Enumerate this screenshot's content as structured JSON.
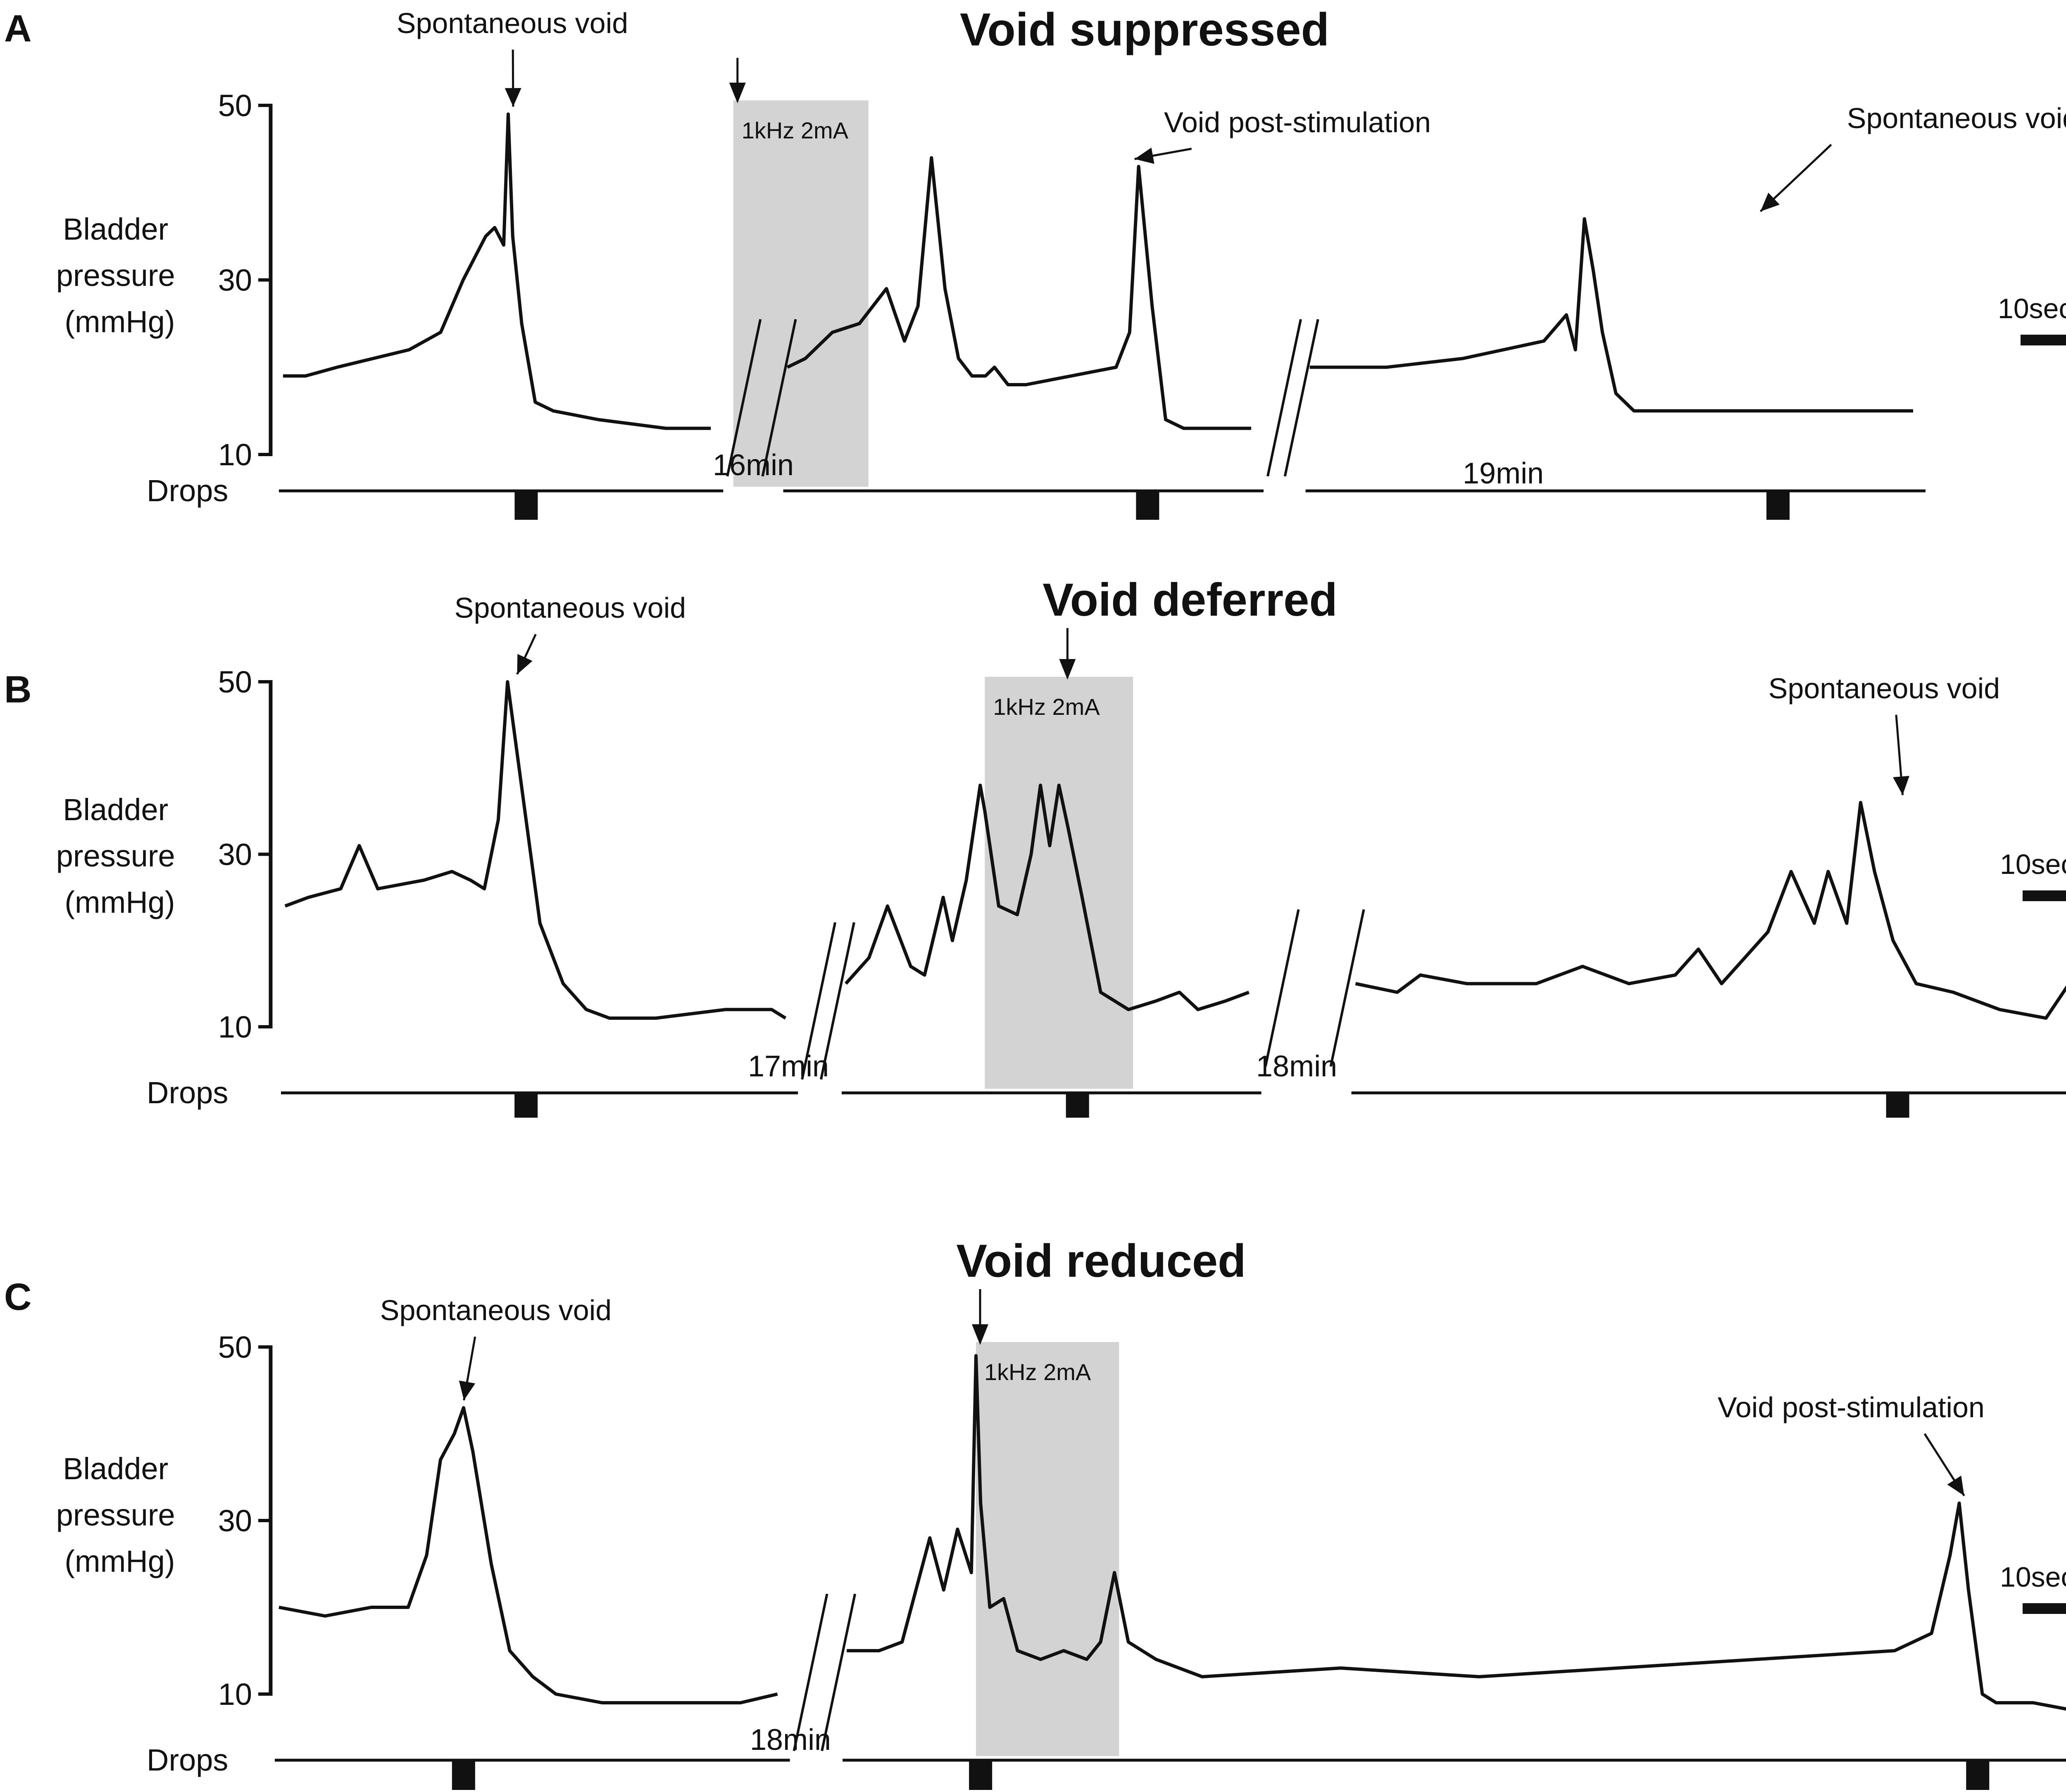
{
  "colors": {
    "trace": "#111111",
    "stim_band": "#d3d3d3",
    "background": "#ffffff"
  },
  "chart_data": [
    {
      "type": "line",
      "panel_label": "A",
      "title": "Void suppressed",
      "ylabel_lines": [
        "Bladder",
        "pressure",
        "(mmHg)"
      ],
      "yticks": [
        10,
        30,
        50
      ],
      "ylim": [
        10,
        50
      ],
      "drops_label": "Drops",
      "scale_bar_label": "10sec",
      "gaps": [
        "16min",
        "19min"
      ],
      "stimulation": {
        "label": "1kHz 2mA",
        "x_start": 100,
        "x_end": 130
      },
      "annotations": [
        {
          "text": "Spontaneous void",
          "target": [
            50,
            49
          ]
        },
        {
          "text": "Void post-stimulation",
          "target": [
            188,
            43
          ]
        },
        {
          "text": "Spontaneous void",
          "target": [
            327,
            37
          ]
        }
      ],
      "drops_at": [
        54,
        192,
        332
      ],
      "x_extent": [
        0,
        401
      ],
      "segments": [
        {
          "x": [
            0,
            5,
            12,
            20,
            28,
            35,
            40,
            45,
            47,
            49,
            50,
            51,
            53,
            56,
            60,
            70,
            85,
            95
          ],
          "y": [
            19,
            19,
            20,
            21,
            22,
            24,
            30,
            35,
            36,
            34,
            49,
            35,
            25,
            16,
            15,
            14,
            13,
            13
          ]
        },
        {
          "x": [
            112,
            116,
            122,
            128,
            134,
            138,
            141,
            144,
            147,
            150,
            153,
            156,
            158,
            161,
            165,
            175,
            185,
            188,
            190,
            193,
            196,
            200,
            215
          ],
          "y": [
            20,
            21,
            24,
            25,
            29,
            23,
            27,
            44,
            29,
            21,
            19,
            19,
            20,
            18,
            18,
            19,
            20,
            24,
            43,
            27,
            14,
            13,
            13
          ]
        },
        {
          "x": [
            228,
            245,
            262,
            280,
            285,
            287,
            289,
            291,
            293,
            296,
            300,
            320,
            340,
            362
          ],
          "y": [
            20,
            20,
            21,
            23,
            26,
            22,
            37,
            31,
            24,
            17,
            15,
            15,
            15,
            15
          ]
        }
      ]
    },
    {
      "type": "line",
      "panel_label": "B",
      "title": "Void deferred",
      "ylabel_lines": [
        "Bladder",
        "pressure",
        "(mmHg)"
      ],
      "yticks": [
        10,
        30,
        50
      ],
      "ylim": [
        10,
        50
      ],
      "drops_label": "Drops",
      "scale_bar_label": "10sec",
      "gaps": [
        "17min",
        "18min"
      ],
      "stimulation": {
        "label": "1kHz 2mA",
        "x_start": 151,
        "x_end": 183
      },
      "annotations": [
        {
          "text": "Spontaneous void",
          "target": [
            49,
            50
          ]
        },
        {
          "text": "Spontaneous void",
          "target": [
            348,
            36
          ]
        }
      ],
      "drops_at": [
        52,
        171,
        348
      ],
      "x_extent": [
        0,
        401
      ],
      "segments": [
        {
          "x": [
            0,
            5,
            12,
            16,
            20,
            30,
            36,
            40,
            43,
            46,
            48,
            51,
            55,
            60,
            65,
            70,
            80,
            95,
            105,
            108
          ],
          "y": [
            24,
            25,
            26,
            31,
            26,
            27,
            28,
            27,
            26,
            34,
            50,
            38,
            22,
            15,
            12,
            11,
            11,
            12,
            12,
            11
          ]
        },
        {
          "x": [
            121,
            126,
            130,
            135,
            138,
            142,
            144,
            147,
            150,
            151,
            154,
            158,
            161,
            163,
            165,
            167,
            169,
            172,
            176,
            182,
            188,
            193,
            197,
            203,
            208
          ],
          "y": [
            15,
            18,
            24,
            17,
            16,
            25,
            20,
            27,
            38,
            35,
            24,
            23,
            30,
            38,
            31,
            38,
            33,
            25,
            14,
            12,
            13,
            14,
            12,
            13,
            14
          ]
        },
        {
          "x": [
            231,
            240,
            245,
            255,
            270,
            280,
            290,
            300,
            305,
            310,
            315,
            320,
            325,
            330,
            333,
            337,
            340,
            343,
            347,
            352,
            360,
            370,
            380,
            385,
            390,
            395,
            401
          ],
          "y": [
            15,
            14,
            16,
            15,
            15,
            17,
            15,
            16,
            19,
            15,
            18,
            21,
            28,
            22,
            28,
            22,
            36,
            28,
            20,
            15,
            14,
            12,
            11,
            15,
            19,
            12,
            13
          ]
        }
      ]
    },
    {
      "type": "line",
      "panel_label": "C",
      "title": "Void reduced",
      "ylabel_lines": [
        "Bladder",
        "pressure",
        "(mmHg)"
      ],
      "yticks": [
        10,
        30,
        50
      ],
      "ylim": [
        10,
        50
      ],
      "drops_label": "Drops",
      "scale_bar_label": "10sec",
      "gaps": [
        "18min"
      ],
      "stimulation": {
        "label": "1kHz 2mA",
        "x_start": 151,
        "x_end": 182
      },
      "annotations": [
        {
          "text": "Spontaneous void",
          "target": [
            39,
            43
          ]
        },
        {
          "text": "Void post-stimulation",
          "target": [
            364,
            32
          ]
        }
      ],
      "drops_at": [
        40,
        152,
        368
      ],
      "x_extent": [
        0,
        401
      ],
      "segments": [
        {
          "x": [
            0,
            10,
            20,
            28,
            32,
            35,
            38,
            40,
            42,
            46,
            50,
            55,
            60,
            70,
            80,
            100,
            108
          ],
          "y": [
            20,
            19,
            20,
            20,
            26,
            37,
            40,
            43,
            38,
            25,
            15,
            12,
            10,
            9,
            9,
            9,
            10
          ]
        },
        {
          "x": [
            123,
            130,
            135,
            138,
            141,
            144,
            147,
            150,
            151,
            152,
            154,
            157,
            160,
            165,
            170,
            175,
            178,
            181,
            184,
            190,
            200,
            230,
            260,
            290,
            320,
            350,
            358,
            362,
            364,
            366,
            369,
            372,
            380,
            390,
            401
          ],
          "y": [
            15,
            15,
            16,
            22,
            28,
            22,
            29,
            24,
            49,
            32,
            20,
            21,
            15,
            14,
            15,
            14,
            16,
            24,
            16,
            14,
            12,
            13,
            12,
            13,
            14,
            15,
            17,
            26,
            32,
            22,
            10,
            9,
            9,
            8,
            8
          ]
        }
      ]
    }
  ]
}
